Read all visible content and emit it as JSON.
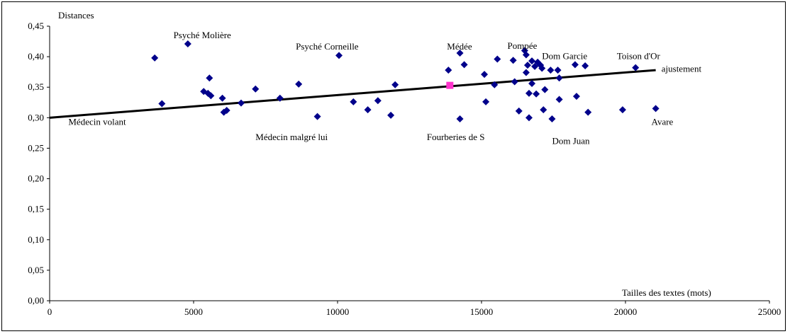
{
  "chart_data": {
    "type": "scatter",
    "ylabel": "Distances",
    "xlabel": "Tailles des textes (mots)",
    "xlim": [
      0,
      25000
    ],
    "ylim": [
      0,
      0.45
    ],
    "x_ticks": [
      0,
      5000,
      10000,
      15000,
      20000,
      25000
    ],
    "y_ticks": [
      0.0,
      0.05,
      0.1,
      0.15,
      0.2,
      0.25,
      0.3,
      0.35,
      0.4,
      0.45
    ],
    "grid": false,
    "colors": {
      "points": "#00008B",
      "highlight": "#FF33CC",
      "line": "#000000"
    },
    "points": [
      {
        "x": 3650,
        "y": 0.398
      },
      {
        "x": 3900,
        "y": 0.323
      },
      {
        "x": 4800,
        "y": 0.421
      },
      {
        "x": 5350,
        "y": 0.343
      },
      {
        "x": 5500,
        "y": 0.34
      },
      {
        "x": 5550,
        "y": 0.365
      },
      {
        "x": 5600,
        "y": 0.336
      },
      {
        "x": 6000,
        "y": 0.332
      },
      {
        "x": 6050,
        "y": 0.309
      },
      {
        "x": 6150,
        "y": 0.312
      },
      {
        "x": 6650,
        "y": 0.324
      },
      {
        "x": 7150,
        "y": 0.347
      },
      {
        "x": 8000,
        "y": 0.332
      },
      {
        "x": 8650,
        "y": 0.355
      },
      {
        "x": 9300,
        "y": 0.302
      },
      {
        "x": 10050,
        "y": 0.402
      },
      {
        "x": 10550,
        "y": 0.326
      },
      {
        "x": 11050,
        "y": 0.313
      },
      {
        "x": 11400,
        "y": 0.328
      },
      {
        "x": 11850,
        "y": 0.304
      },
      {
        "x": 12000,
        "y": 0.354
      },
      {
        "x": 13850,
        "y": 0.378
      },
      {
        "x": 14250,
        "y": 0.406
      },
      {
        "x": 14250,
        "y": 0.298
      },
      {
        "x": 14400,
        "y": 0.387
      },
      {
        "x": 15100,
        "y": 0.371
      },
      {
        "x": 15150,
        "y": 0.326
      },
      {
        "x": 15450,
        "y": 0.354
      },
      {
        "x": 15550,
        "y": 0.396
      },
      {
        "x": 16100,
        "y": 0.394
      },
      {
        "x": 16150,
        "y": 0.359
      },
      {
        "x": 16300,
        "y": 0.311
      },
      {
        "x": 16500,
        "y": 0.41
      },
      {
        "x": 16550,
        "y": 0.403
      },
      {
        "x": 16550,
        "y": 0.374
      },
      {
        "x": 16600,
        "y": 0.386
      },
      {
        "x": 16650,
        "y": 0.34
      },
      {
        "x": 16650,
        "y": 0.3
      },
      {
        "x": 16750,
        "y": 0.393
      },
      {
        "x": 16750,
        "y": 0.356
      },
      {
        "x": 16850,
        "y": 0.384
      },
      {
        "x": 16900,
        "y": 0.339
      },
      {
        "x": 16950,
        "y": 0.391
      },
      {
        "x": 17050,
        "y": 0.386
      },
      {
        "x": 17100,
        "y": 0.381
      },
      {
        "x": 17150,
        "y": 0.313
      },
      {
        "x": 17200,
        "y": 0.346
      },
      {
        "x": 17400,
        "y": 0.378
      },
      {
        "x": 17450,
        "y": 0.298
      },
      {
        "x": 17650,
        "y": 0.378
      },
      {
        "x": 17700,
        "y": 0.33
      },
      {
        "x": 17700,
        "y": 0.365
      },
      {
        "x": 18250,
        "y": 0.387
      },
      {
        "x": 18300,
        "y": 0.335
      },
      {
        "x": 18600,
        "y": 0.385
      },
      {
        "x": 18700,
        "y": 0.309
      },
      {
        "x": 19900,
        "y": 0.313
      },
      {
        "x": 20350,
        "y": 0.382
      },
      {
        "x": 21050,
        "y": 0.315
      }
    ],
    "highlight_point": {
      "x": 13900,
      "y": 0.353
    },
    "trendline": {
      "name": "ajustement",
      "x": [
        0,
        21050
      ],
      "y": [
        0.3,
        0.378
      ]
    },
    "annotations": [
      {
        "text": "Psyché Molière",
        "x": 4300,
        "y": 0.43
      },
      {
        "text": "Psyché Corneille",
        "x": 8550,
        "y": 0.412
      },
      {
        "text": "Médée",
        "x": 13800,
        "y": 0.412
      },
      {
        "text": "Pompée",
        "x": 15900,
        "y": 0.413
      },
      {
        "text": "Dom Garcie",
        "x": 17100,
        "y": 0.396
      },
      {
        "text": "Toison d'Or",
        "x": 19700,
        "y": 0.396
      },
      {
        "text": "ajustement",
        "x": 21250,
        "y": 0.375
      },
      {
        "text": "Médecin volant",
        "x": 650,
        "y": 0.288
      },
      {
        "text": "Médecin malgré lui",
        "x": 7150,
        "y": 0.263
      },
      {
        "text": "Fourberies de S",
        "x": 13100,
        "y": 0.263
      },
      {
        "text": "Avare",
        "x": 20900,
        "y": 0.288
      },
      {
        "text": "Dom Juan",
        "x": 17450,
        "y": 0.257
      }
    ]
  }
}
